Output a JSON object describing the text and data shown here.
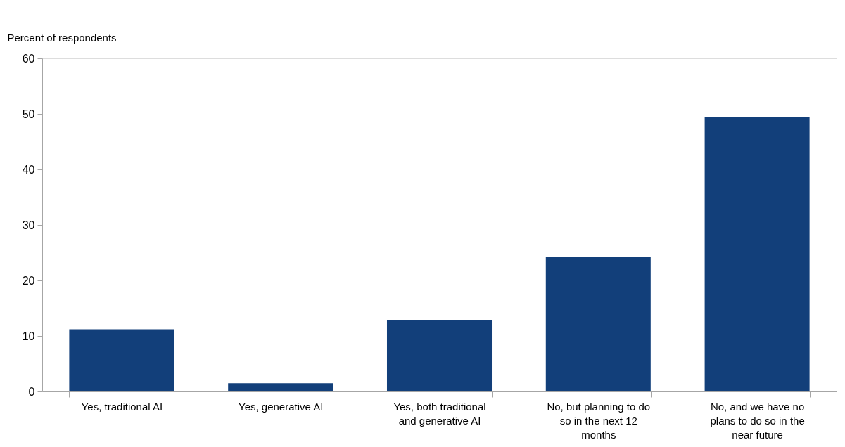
{
  "chart_data": {
    "type": "bar",
    "ylabel": "Percent of respondents",
    "categories": [
      "Yes, traditional AI",
      "Yes, generative AI",
      "Yes, both traditional and generative AI",
      "No, but planning to do so in the next 12 months",
      "No, and we have no plans to do so in the near future"
    ],
    "values": [
      11.2,
      1.5,
      12.9,
      24.3,
      49.5
    ],
    "color": "#123f7a",
    "ylim": [
      0,
      60
    ],
    "yticks": [
      0,
      10,
      20,
      30,
      40,
      50,
      60
    ],
    "grid": false
  }
}
